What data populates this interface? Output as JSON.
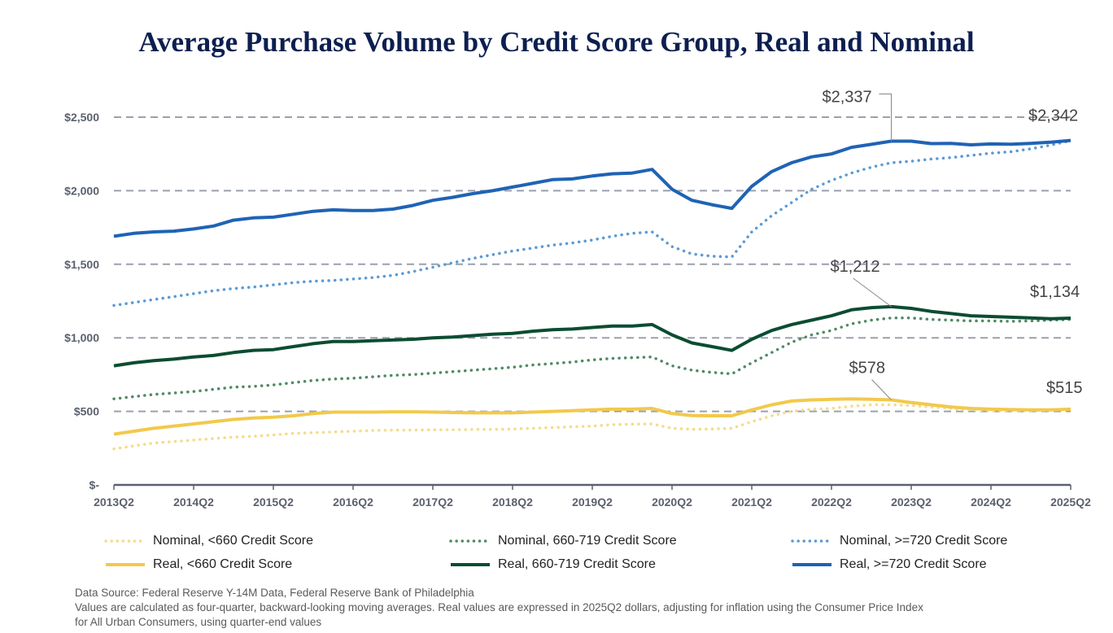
{
  "chart_data": {
    "type": "line",
    "title": "Average Purchase Volume by Credit Score Group, Real and Nominal",
    "xlabel": "",
    "ylabel": "",
    "ylim": [
      0,
      2500
    ],
    "yticks": [
      0,
      500,
      1000,
      1500,
      2000,
      2500
    ],
    "ytick_labels": [
      "$-",
      "$500",
      "$1,000",
      "$1,500",
      "$2,000",
      "$2,500"
    ],
    "xtick_labels": [
      "2013Q2",
      "2014Q2",
      "2015Q2",
      "2016Q2",
      "2017Q2",
      "2018Q2",
      "2019Q2",
      "2020Q2",
      "2021Q2",
      "2022Q2",
      "2023Q2",
      "2024Q2",
      "2025Q2"
    ],
    "x_start": "2013Q2",
    "x_end": "2025Q2",
    "grid": "horizontal dashed",
    "legend_placement": "bottom",
    "series": [
      {
        "name": "Nominal, <660 Credit Score",
        "style": "dotted",
        "color": "#f3dc8c",
        "values": [
          245,
          265,
          285,
          295,
          305,
          315,
          325,
          330,
          340,
          350,
          355,
          360,
          365,
          370,
          372,
          373,
          375,
          375,
          377,
          378,
          380,
          385,
          390,
          395,
          400,
          410,
          413,
          415,
          385,
          378,
          380,
          385,
          430,
          470,
          500,
          515,
          520,
          535,
          545,
          545,
          540,
          530,
          520,
          510,
          505,
          505,
          505,
          508,
          515
        ]
      },
      {
        "name": "Nominal, 660-719 Credit Score",
        "style": "dotted",
        "color": "#4f8a66",
        "values": [
          585,
          600,
          615,
          625,
          635,
          650,
          665,
          670,
          680,
          695,
          710,
          720,
          725,
          735,
          745,
          750,
          760,
          770,
          780,
          790,
          800,
          815,
          825,
          835,
          850,
          860,
          865,
          870,
          810,
          780,
          765,
          755,
          830,
          900,
          970,
          1020,
          1050,
          1095,
          1120,
          1135,
          1135,
          1125,
          1120,
          1115,
          1115,
          1112,
          1115,
          1120,
          1125
        ]
      },
      {
        "name": "Nominal, >=720 Credit Score",
        "style": "dotted",
        "color": "#5b9bd5",
        "values": [
          1220,
          1240,
          1260,
          1280,
          1300,
          1320,
          1335,
          1345,
          1360,
          1375,
          1385,
          1390,
          1400,
          1410,
          1425,
          1450,
          1480,
          1510,
          1540,
          1565,
          1590,
          1610,
          1630,
          1645,
          1665,
          1690,
          1710,
          1720,
          1620,
          1570,
          1555,
          1550,
          1720,
          1830,
          1920,
          2010,
          2070,
          2120,
          2160,
          2190,
          2200,
          2215,
          2225,
          2240,
          2255,
          2265,
          2285,
          2310,
          2340
        ]
      },
      {
        "name": "Real, <660 Credit Score",
        "style": "solid",
        "color": "#f2c94c",
        "values": [
          345,
          365,
          385,
          400,
          415,
          430,
          445,
          455,
          460,
          470,
          485,
          495,
          495,
          495,
          497,
          497,
          495,
          492,
          490,
          490,
          490,
          495,
          500,
          505,
          510,
          515,
          515,
          520,
          485,
          472,
          470,
          470,
          510,
          545,
          570,
          578,
          582,
          585,
          582,
          578,
          560,
          545,
          530,
          520,
          515,
          512,
          510,
          510,
          515
        ]
      },
      {
        "name": "Real, 660-719 Credit Score",
        "style": "solid",
        "color": "#0b4d32",
        "values": [
          810,
          830,
          845,
          855,
          870,
          880,
          900,
          915,
          920,
          940,
          960,
          975,
          975,
          980,
          985,
          990,
          1000,
          1005,
          1015,
          1025,
          1030,
          1045,
          1055,
          1060,
          1070,
          1080,
          1080,
          1090,
          1020,
          965,
          940,
          915,
          990,
          1050,
          1090,
          1120,
          1150,
          1190,
          1205,
          1212,
          1200,
          1180,
          1165,
          1150,
          1145,
          1140,
          1135,
          1130,
          1134
        ]
      },
      {
        "name": "Real, >=720 Credit Score",
        "style": "solid",
        "color": "#1f63b5",
        "values": [
          1690,
          1710,
          1720,
          1725,
          1740,
          1760,
          1800,
          1815,
          1820,
          1840,
          1860,
          1870,
          1865,
          1865,
          1875,
          1900,
          1935,
          1955,
          1980,
          2000,
          2025,
          2050,
          2075,
          2080,
          2100,
          2115,
          2120,
          2145,
          2010,
          1935,
          1905,
          1880,
          2030,
          2130,
          2190,
          2230,
          2250,
          2295,
          2315,
          2337,
          2337,
          2320,
          2322,
          2312,
          2318,
          2316,
          2322,
          2330,
          2342
        ]
      }
    ],
    "annotations": [
      {
        "text": "$2,337",
        "series": 5,
        "point": "2023Q1",
        "value": 2337
      },
      {
        "text": "$2,342",
        "series": 5,
        "point": "2025Q2",
        "value": 2342
      },
      {
        "text": "$1,212",
        "series": 4,
        "point": "2023Q1",
        "value": 1212
      },
      {
        "text": "$1,134",
        "series": 4,
        "point": "2025Q2",
        "value": 1134
      },
      {
        "text": "$578",
        "series": 3,
        "point": "2023Q1",
        "value": 578
      },
      {
        "text": "$515",
        "series": 3,
        "point": "2025Q2",
        "value": 515
      }
    ]
  },
  "footer": {
    "source": "Data Source: Federal Reserve Y-14M Data, Federal Reserve Bank of Philadelphia",
    "note1": "Values are calculated as four-quarter, backward-looking moving averages. Real values are expressed in 2025Q2 dollars, adjusting for inflation using the Consumer Price Index",
    "note2": "for All Urban Consumers, using quarter-end values"
  }
}
